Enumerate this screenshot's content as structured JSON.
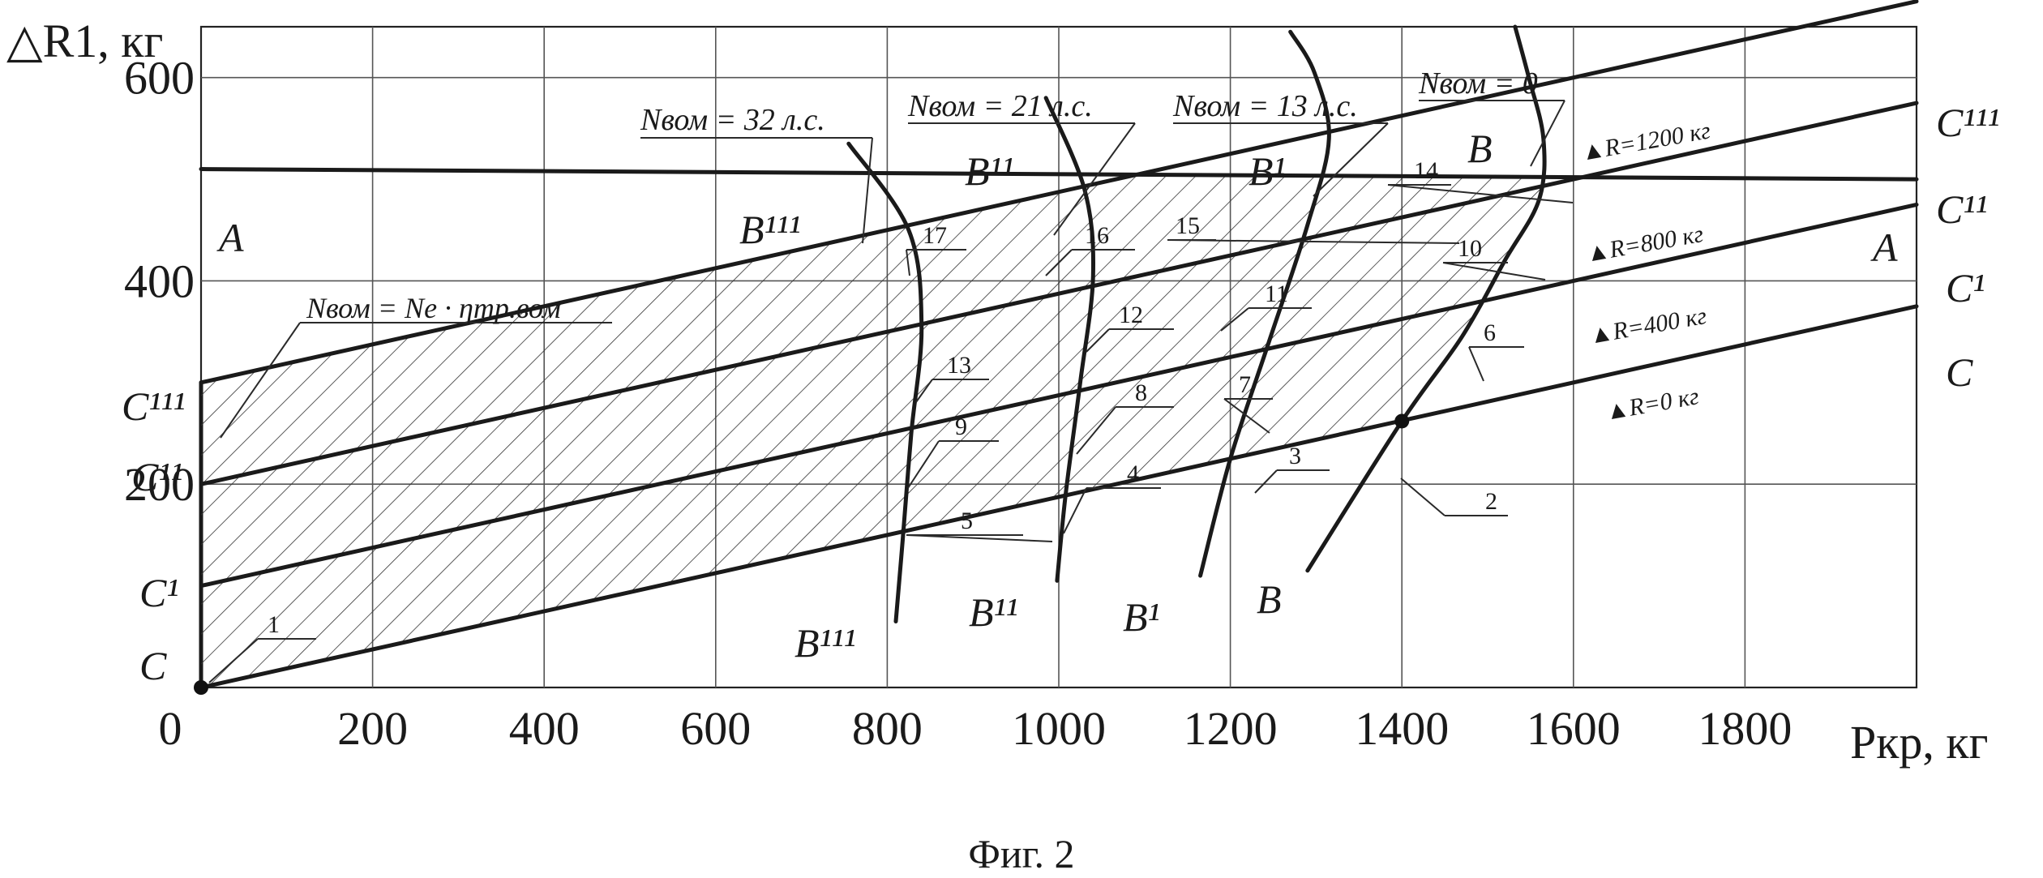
{
  "chart_data": {
    "type": "line",
    "title": "",
    "caption": "Фиг. 2",
    "ylabel": "△R1, кг",
    "xlabel": "Pкр, кг",
    "xlim": [
      0,
      2000
    ],
    "ylim": [
      0,
      700
    ],
    "x_ticks": [
      "0",
      "200",
      "400",
      "600",
      "800",
      "1000",
      "1200",
      "1400",
      "1600",
      "1800"
    ],
    "x_tick_values": [
      0,
      200,
      400,
      600,
      800,
      1000,
      1200,
      1400,
      1600,
      1800
    ],
    "y_ticks": [
      "200",
      "400",
      "600"
    ],
    "y_tick_values": [
      200,
      400,
      600
    ],
    "grid": true,
    "lines": [
      {
        "id": "A",
        "label_left": "A",
        "label_right": "A",
        "points": [
          [
            0,
            510
          ],
          [
            2000,
            500
          ]
        ]
      },
      {
        "id": "C",
        "label_left": "C",
        "label_right": "C",
        "param": "▲R=0 кг",
        "points": [
          [
            0,
            0
          ],
          [
            2000,
            375
          ]
        ]
      },
      {
        "id": "C1",
        "label_left": "C¹",
        "label_right": "C¹",
        "param": "▲R=400 кг",
        "points": [
          [
            0,
            100
          ],
          [
            2000,
            475
          ]
        ]
      },
      {
        "id": "C11",
        "label_left": "C¹¹",
        "label_right": "C¹¹",
        "param": "▲R=800 кг",
        "points": [
          [
            0,
            200
          ],
          [
            2000,
            575
          ]
        ]
      },
      {
        "id": "C111",
        "label_left": "C¹¹¹",
        "label_right": "C¹¹¹",
        "param": "▲R=1200 кг",
        "points": [
          [
            0,
            300
          ],
          [
            2000,
            675
          ]
        ]
      }
    ],
    "curves": [
      {
        "id": "B",
        "label_top": "B",
        "label_bottom": "B",
        "nvom": "Nвом = 0",
        "points": [
          [
            1290,
            115
          ],
          [
            1400,
            262
          ],
          [
            1470,
            345
          ],
          [
            1520,
            420
          ],
          [
            1560,
            480
          ],
          [
            1565,
            540
          ],
          [
            1548,
            600
          ],
          [
            1532,
            650
          ]
        ]
      },
      {
        "id": "B1",
        "label_top": "B¹",
        "label_bottom": "B¹",
        "nvom": "Nвом = 13 л.с.",
        "points": [
          [
            1165,
            110
          ],
          [
            1200,
            225
          ],
          [
            1245,
            340
          ],
          [
            1290,
            455
          ],
          [
            1315,
            540
          ],
          [
            1298,
            605
          ],
          [
            1270,
            645
          ]
        ]
      },
      {
        "id": "B11",
        "label_top": "B¹¹",
        "label_bottom": "B¹¹",
        "nvom": "Nвом = 21 л.с.",
        "points": [
          [
            998,
            105
          ],
          [
            1008,
            190
          ],
          [
            1025,
            300
          ],
          [
            1040,
            405
          ],
          [
            1030,
            490
          ],
          [
            985,
            580
          ]
        ]
      },
      {
        "id": "B111",
        "label_top": "B¹¹¹",
        "label_bottom": "B¹¹¹",
        "nvom": "Nвом = 32 л.с.",
        "points": [
          [
            810,
            65
          ],
          [
            818,
            145
          ],
          [
            828,
            250
          ],
          [
            840,
            355
          ],
          [
            825,
            450
          ],
          [
            755,
            535
          ]
        ]
      }
    ],
    "points": [
      {
        "label": "0",
        "x": 0,
        "y": 0
      },
      {
        "label": "2",
        "x": 1400,
        "y": 262
      }
    ],
    "hatched_region": "between C and C¹¹¹, bounded by A and B",
    "annotations": {
      "nvom_formula": "Nвом = Ne · ηтр.вом",
      "numbers": [
        "1",
        "2",
        "3",
        "4",
        "5",
        "6",
        "7",
        "8",
        "9",
        "10",
        "11",
        "12",
        "13",
        "14",
        "15",
        "16",
        "17"
      ]
    },
    "axis_arrow_extra": ""
  }
}
